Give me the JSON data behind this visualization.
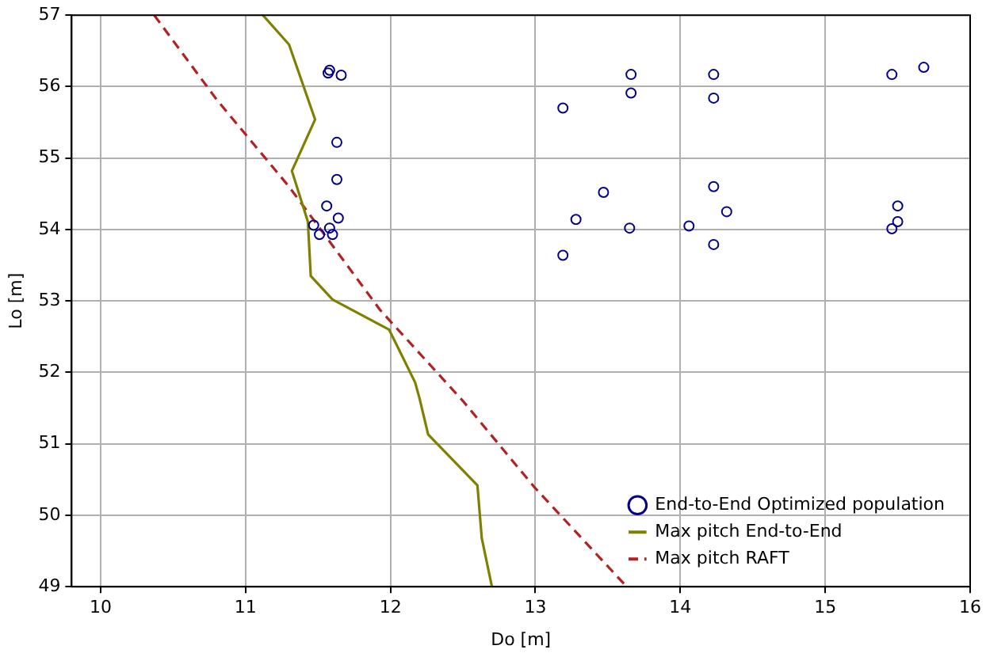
{
  "chart_data": {
    "type": "scatter",
    "xlabel": "Do [m]",
    "ylabel": "Lo [m]",
    "xlim": [
      9.8,
      16
    ],
    "ylim": [
      49,
      57
    ],
    "xticks": [
      10,
      11,
      12,
      13,
      14,
      15,
      16
    ],
    "yticks": [
      49,
      50,
      51,
      52,
      53,
      54,
      55,
      56,
      57
    ],
    "grid": true,
    "legend": "bottom right",
    "series": [
      {
        "name": "End-to-End Optimized population",
        "type": "scatter",
        "marker": "circle",
        "color": "#00008b",
        "x": [
          11.57,
          11.58,
          11.66,
          11.63,
          11.63,
          11.56,
          11.64,
          11.47,
          11.58,
          11.51,
          11.6,
          13.19,
          13.47,
          13.28,
          13.65,
          13.19,
          14.23,
          14.32,
          14.06,
          14.23,
          15.5,
          15.5,
          15.46,
          13.66,
          13.66,
          14.23,
          14.23,
          15.46,
          15.68
        ],
        "values": [
          56.19,
          56.23,
          56.16,
          55.22,
          54.7,
          54.33,
          54.16,
          54.06,
          54.02,
          53.93,
          53.93,
          55.7,
          54.52,
          54.14,
          54.02,
          53.64,
          54.6,
          54.25,
          54.05,
          53.79,
          54.33,
          54.11,
          54.01,
          56.17,
          55.91,
          56.17,
          55.84,
          56.17,
          56.27
        ]
      },
      {
        "name": "Max pitch End-to-End",
        "type": "line",
        "marker": "none",
        "line_style": "solid",
        "color": "#808000",
        "x": [
          11.12,
          11.3,
          11.48,
          11.32,
          11.43,
          11.45,
          11.6,
          11.99,
          12.17,
          12.2,
          12.26,
          12.6,
          12.63,
          12.7
        ],
        "values": [
          57,
          56.59,
          55.54,
          54.82,
          54.11,
          53.35,
          53.02,
          52.6,
          51.86,
          51.64,
          51.13,
          50.42,
          49.68,
          49
        ]
      },
      {
        "name": "Max pitch RAFT",
        "type": "line",
        "marker": "none",
        "line_style": "dashed",
        "color": "#b22222",
        "x": [
          10.37,
          10.8,
          11.3,
          11.93,
          12.5,
          12.99,
          13.63
        ],
        "values": [
          57,
          55.82,
          54.6,
          52.87,
          51.6,
          50.4,
          49
        ]
      }
    ]
  }
}
